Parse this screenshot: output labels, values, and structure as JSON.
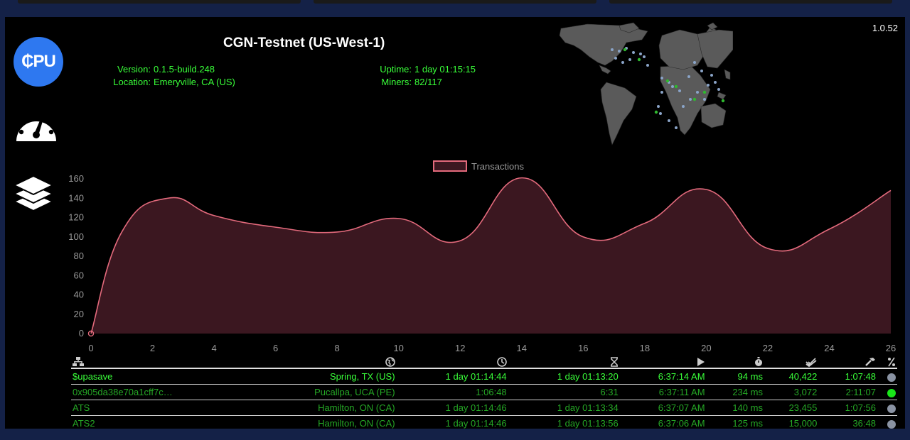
{
  "app_version": "1.0.52",
  "node": {
    "title": "CGN-Testnet (US-West-1)",
    "version_label": "Version:",
    "version": "0.1.5-build.248",
    "location_label": "Location:",
    "location": "Emeryville, CA (US)",
    "uptime_label": "Uptime:",
    "uptime": "1 day 01:15:15",
    "miners_label": "Miners:",
    "miners": "82/117"
  },
  "sidebar": {
    "cpu_label": "₵PU",
    "icons": [
      "cpu-icon",
      "speedometer-icon",
      "layers-icon"
    ]
  },
  "chart_data": {
    "type": "area",
    "legend": [
      "Transactions"
    ],
    "series": [
      {
        "name": "Transactions",
        "x": [
          0,
          1,
          2.5,
          4,
          6,
          8,
          10,
          12,
          14,
          16,
          18,
          20,
          22,
          24,
          26
        ],
        "y": [
          0,
          105,
          140,
          122,
          110,
          105,
          119,
          96,
          161,
          100,
          114,
          149,
          88,
          108,
          148
        ]
      }
    ],
    "ylim": [
      0,
      160
    ],
    "xlim": [
      0,
      26
    ],
    "yticks": [
      "0",
      "20",
      "40",
      "60",
      "80",
      "100",
      "120",
      "140",
      "160"
    ],
    "xticks": [
      "0",
      "2",
      "4",
      "6",
      "8",
      "10",
      "12",
      "14",
      "16",
      "18",
      "20",
      "22",
      "24",
      "26"
    ],
    "colors": {
      "line": "#e36a7c",
      "fill": "#3b1720"
    }
  },
  "table": {
    "header_icons": [
      "network-icon",
      "globe-icon",
      "clock-icon",
      "hourglass-icon",
      "play-icon",
      "stopwatch-icon",
      "double-check-icon",
      "hammer-icon",
      "percent-icon"
    ],
    "rows": [
      {
        "name": "$upasave",
        "location": "Spring, TX (US)",
        "uptime": "1 day 01:14:44",
        "session": "1 day 01:13:20",
        "last_seen": "6:37:14 AM",
        "latency": "94 ms",
        "accepted": "40,422",
        "mining_time": "1:07:48",
        "status": "grey",
        "style": "active"
      },
      {
        "name": "0x905da38e70a1cff7c…",
        "location": "Pucallpa, UCA (PE)",
        "uptime": "1:06:48",
        "session": "6:31",
        "last_seen": "6:37:11 AM",
        "latency": "234 ms",
        "accepted": "3,072",
        "mining_time": "2:11:07",
        "status": "green",
        "style": "dim"
      },
      {
        "name": "ATS",
        "location": "Hamilton, ON (CA)",
        "uptime": "1 day 01:14:46",
        "session": "1 day 01:13:34",
        "last_seen": "6:37:07 AM",
        "latency": "140 ms",
        "accepted": "23,455",
        "mining_time": "1:07:56",
        "status": "grey",
        "style": "dim"
      },
      {
        "name": "ATS2",
        "location": "Hamilton, ON (CA)",
        "uptime": "1 day 01:14:46",
        "session": "1 day 01:13:56",
        "last_seen": "6:37:06 AM",
        "latency": "125 ms",
        "accepted": "15,000",
        "mining_time": "36:48",
        "status": "grey",
        "style": "dim"
      }
    ],
    "status_colors": {
      "grey": "#8a93a3",
      "green": "#19e619"
    }
  }
}
